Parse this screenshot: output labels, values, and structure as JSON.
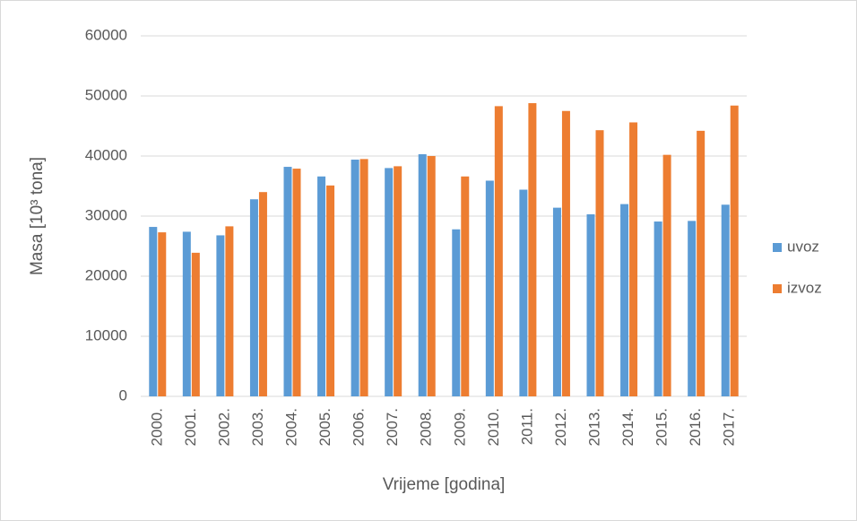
{
  "chart_data": {
    "type": "bar",
    "categories": [
      "2000.",
      "2001.",
      "2002.",
      "2003.",
      "2004.",
      "2005.",
      "2006.",
      "2007.",
      "2008.",
      "2009.",
      "2010.",
      "2011.",
      "2012.",
      "2013.",
      "2014.",
      "2015.",
      "2016.",
      "2017."
    ],
    "series": [
      {
        "name": "uvoz",
        "color": "#5b9bd5",
        "values": [
          28200,
          27400,
          26800,
          32800,
          38200,
          36600,
          39400,
          38000,
          40300,
          27800,
          35900,
          34400,
          31400,
          30300,
          32000,
          29100,
          29200,
          31900
        ]
      },
      {
        "name": "izvoz",
        "color": "#ed7d31",
        "values": [
          27300,
          23900,
          28300,
          34000,
          37900,
          35100,
          39500,
          38300,
          40000,
          36600,
          48300,
          48800,
          47500,
          44300,
          45600,
          40200,
          44200,
          48400
        ]
      }
    ],
    "ylabel": "Masa [10³ tona]",
    "xlabel": "Vrijeme [godina]",
    "ylim": [
      0,
      60000
    ],
    "yticks": [
      0,
      10000,
      20000,
      30000,
      40000,
      50000,
      60000
    ],
    "grid": true,
    "legend": "right"
  }
}
